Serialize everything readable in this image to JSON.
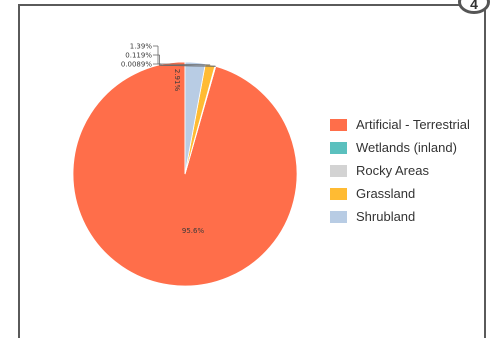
{
  "badge": "4",
  "chart_data": {
    "type": "pie",
    "start_angle_deg": 0,
    "direction": "counterclockwise",
    "slices": [
      {
        "name": "Artificial - Terrestrial",
        "value": 95.6,
        "label": "95.6%",
        "color": "#FF6E4A"
      },
      {
        "name": "Wetlands (inland)",
        "value": 0.0089,
        "label": "0.0089%",
        "color": "#5BC0BE"
      },
      {
        "name": "Rocky Areas",
        "value": 0.119,
        "label": "0.119%",
        "color": "#D3D3D3"
      },
      {
        "name": "Grassland",
        "value": 1.39,
        "label": "1.39%",
        "color": "#FFBB33"
      },
      {
        "name": "Shrubland",
        "value": 2.91,
        "label": "2.91%",
        "color": "#B8CCE4"
      }
    ],
    "legend_position": "right"
  }
}
